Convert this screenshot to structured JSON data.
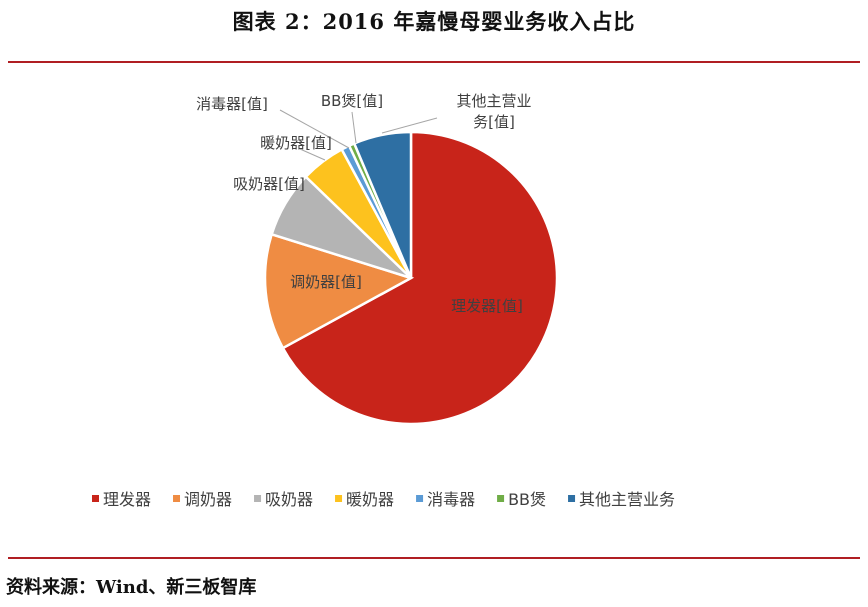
{
  "header": {
    "title": "图表 2：2016 年嘉慢母婴业务收入占比"
  },
  "footer": {
    "source": "资料来源：Wind、新三板智库"
  },
  "colors": {
    "rule": "#b01e23"
  },
  "chart_data": {
    "type": "pie",
    "title": "",
    "legend_position": "bottom",
    "categories": [
      "理发器",
      "调奶器",
      "吸奶器",
      "暖奶器",
      "消毒器",
      "BB煲",
      "其他主营业务"
    ],
    "values": [
      66.5,
      12.7,
      7.3,
      4.9,
      0.9,
      0.6,
      6.3
    ],
    "colors": [
      "#c8241a",
      "#ef8c43",
      "#b4b4b4",
      "#fdc21e",
      "#5b9bd5",
      "#70ad47",
      "#2e6fa3"
    ],
    "data_labels": [
      "理发器[值]",
      "调奶器[值]",
      "吸奶器[值]",
      "暖奶器[值]",
      "消毒器[值]",
      "BB煲[值]",
      "其他主营业务[值]"
    ]
  }
}
